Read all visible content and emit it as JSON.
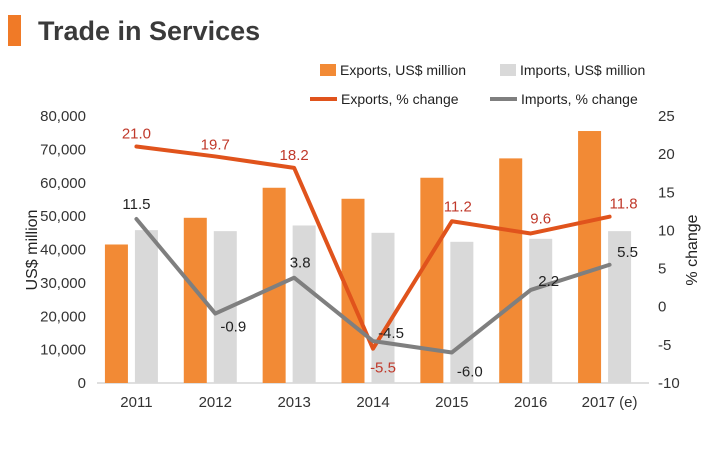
{
  "header": {
    "title": "Trade in Services",
    "accent_color": "#f07a27"
  },
  "chart_data": {
    "type": "bar+line",
    "title": "Trade in Services",
    "categories": [
      "2011",
      "2012",
      "2013",
      "2014",
      "2015",
      "2016",
      "2017 (e)"
    ],
    "bar_series": [
      {
        "name": "Exports, US$ million",
        "color": "#f28a35",
        "values": [
          41500,
          49500,
          58500,
          55200,
          61500,
          67300,
          75500
        ]
      },
      {
        "name": "Imports, US$ million",
        "color": "#d9d9d9",
        "values": [
          45800,
          45500,
          47200,
          45000,
          42300,
          43200,
          45500
        ]
      }
    ],
    "line_series": [
      {
        "name": "Exports, % change",
        "color": "#e0531c",
        "label_color": "#c0392b",
        "values": [
          21.0,
          19.7,
          18.2,
          -5.5,
          11.2,
          9.6,
          11.8
        ],
        "labels": [
          "21.0",
          "19.7",
          "18.2",
          "-5.5",
          "11.2",
          "9.6",
          "11.8"
        ]
      },
      {
        "name": "Imports, % change",
        "color": "#7f7f7f",
        "label_color": "#222222",
        "values": [
          11.5,
          -0.9,
          3.8,
          -4.5,
          -6.0,
          2.2,
          5.5
        ],
        "labels": [
          "11.5",
          "-0.9",
          "3.8",
          "-4.5",
          "-6.0",
          "2.2",
          "5.5"
        ]
      }
    ],
    "ylabel_left": "US$ million",
    "ylim_left": [
      0,
      80000
    ],
    "yticks_left": [
      "0",
      "10,000",
      "20,000",
      "30,000",
      "40,000",
      "50,000",
      "60,000",
      "70,000",
      "80,000"
    ],
    "ylabel_right": "% change",
    "ylim_right": [
      -10,
      25
    ],
    "yticks_right": [
      "-10",
      "-5",
      "0",
      "5",
      "10",
      "15",
      "20",
      "25"
    ],
    "legend_position": "top-right",
    "grid": false
  }
}
